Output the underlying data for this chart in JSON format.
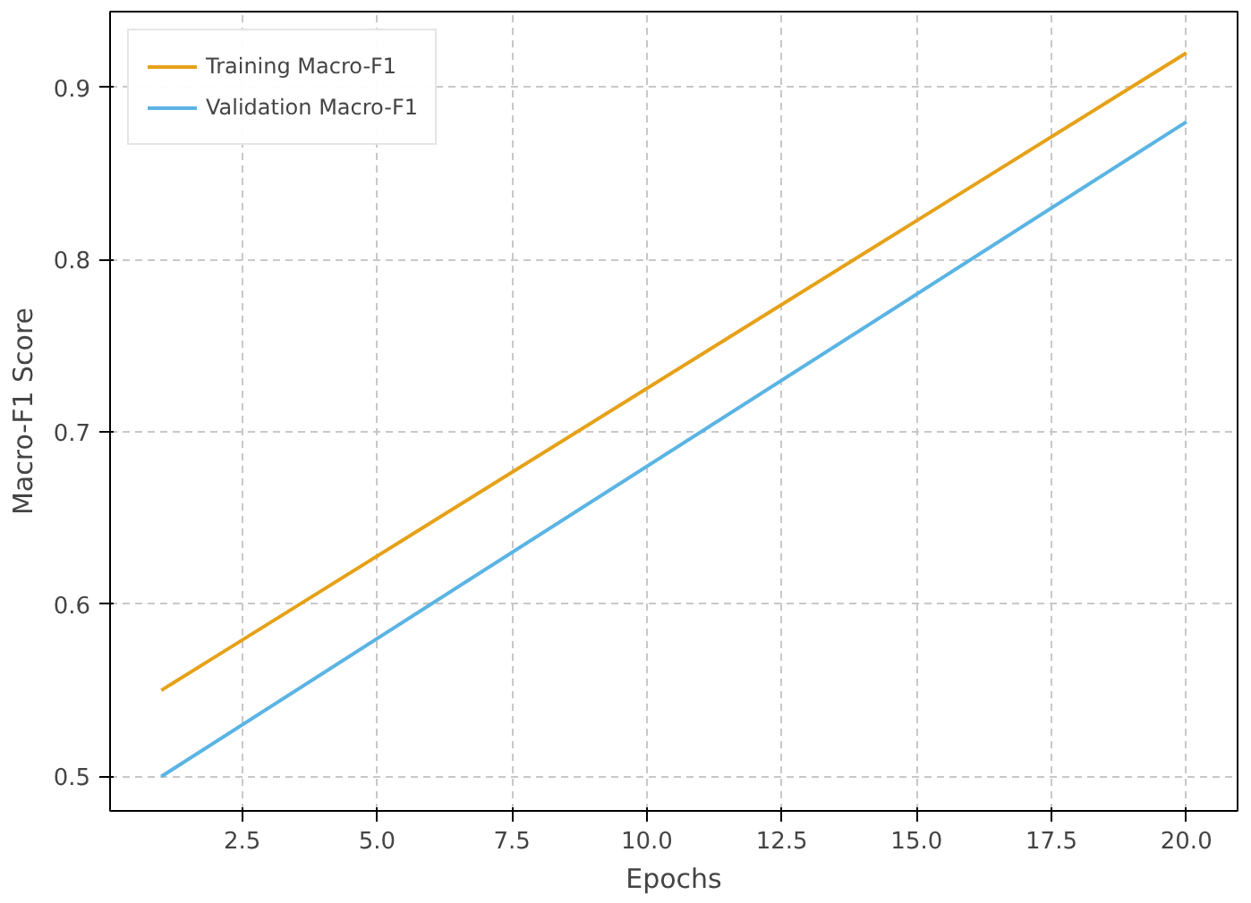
{
  "chart_data": {
    "type": "line",
    "xlabel": "Epochs",
    "ylabel": "Macro-F1 Score",
    "x": [
      1,
      20
    ],
    "series": [
      {
        "name": "Training Macro-F1",
        "color": "#e6a118",
        "values": [
          0.55,
          0.92
        ]
      },
      {
        "name": "Validation Macro-F1",
        "color": "#5ab4e4",
        "values": [
          0.5,
          0.88
        ]
      }
    ],
    "xlim": [
      0.05,
      20.95
    ],
    "ylim": [
      0.48,
      0.944
    ],
    "xticks": [
      {
        "value": 2.5,
        "label": "2.5"
      },
      {
        "value": 5,
        "label": "5.0"
      },
      {
        "value": 7.5,
        "label": "7.5"
      },
      {
        "value": 10,
        "label": "10.0"
      },
      {
        "value": 12.5,
        "label": "12.5"
      },
      {
        "value": 15,
        "label": "15.0"
      },
      {
        "value": 17.5,
        "label": "17.5"
      },
      {
        "value": 20,
        "label": "20.0"
      }
    ],
    "yticks": [
      0.5,
      0.6,
      0.7,
      0.8,
      0.9
    ],
    "grid": true,
    "legend": "top left",
    "line_style": "solid"
  }
}
